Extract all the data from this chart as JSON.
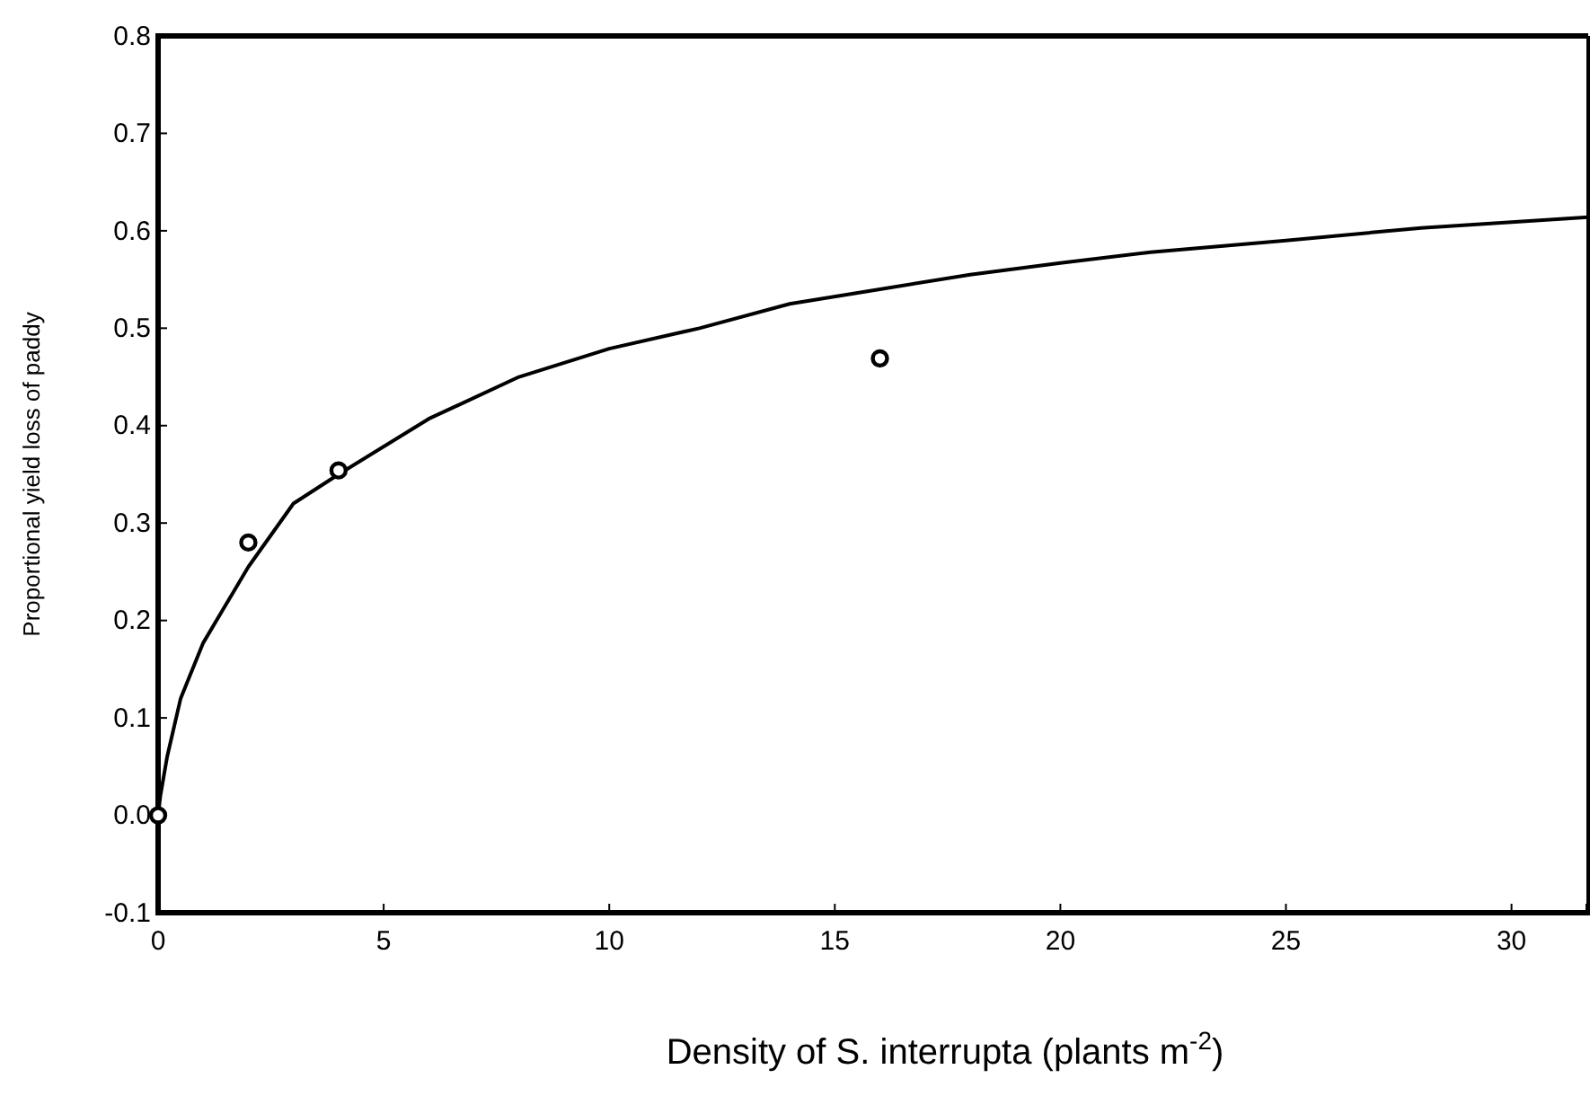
{
  "chart_data": {
    "type": "line",
    "xlabel": "Density of S. interrupta  (plants m$^{-2}$)",
    "ylabel": "Proportional yield loss of paddy",
    "xlim": [
      0,
      31.7
    ],
    "xticks": [
      0,
      5,
      10,
      15,
      20,
      25,
      30
    ],
    "ylim": [
      -0.1,
      0.8
    ],
    "yticks": [
      {
        "value": -0.1,
        "label": "-0.1"
      },
      {
        "value": 0,
        "label": "0.0"
      },
      {
        "value": 0.1,
        "label": "0.1"
      },
      {
        "value": 0.2,
        "label": "0.2"
      },
      {
        "value": 0.3,
        "label": "0.3"
      },
      {
        "value": 0.4,
        "label": "0.4"
      },
      {
        "value": 0.5,
        "label": "0.5"
      },
      {
        "value": 0.6,
        "label": "0.6"
      },
      {
        "value": 0.7,
        "label": "0.7"
      },
      {
        "value": 0.8,
        "label": "0.8"
      }
    ],
    "grid": false,
    "series": [
      {
        "color": "#000000",
        "marker": "none",
        "line_style": "solid",
        "x": [
          0,
          0.05,
          0.2,
          0.5,
          1,
          2,
          3,
          4,
          6,
          8,
          10,
          12,
          14,
          16,
          18,
          20,
          22,
          25,
          28,
          31.7
        ],
        "values": [
          0,
          0.02,
          0.06,
          0.12,
          0.177,
          0.255,
          0.32,
          0.35,
          0.407,
          0.45,
          0.479,
          0.5,
          0.525,
          0.54,
          0.555,
          0.567,
          0.578,
          0.59,
          0.603,
          0.614
        ]
      },
      {
        "type": "scatter",
        "color": "#000000",
        "marker": "circle",
        "x": [
          0,
          2,
          4,
          16
        ],
        "values": [
          0,
          0.28,
          0.354,
          0.469
        ]
      }
    ]
  }
}
